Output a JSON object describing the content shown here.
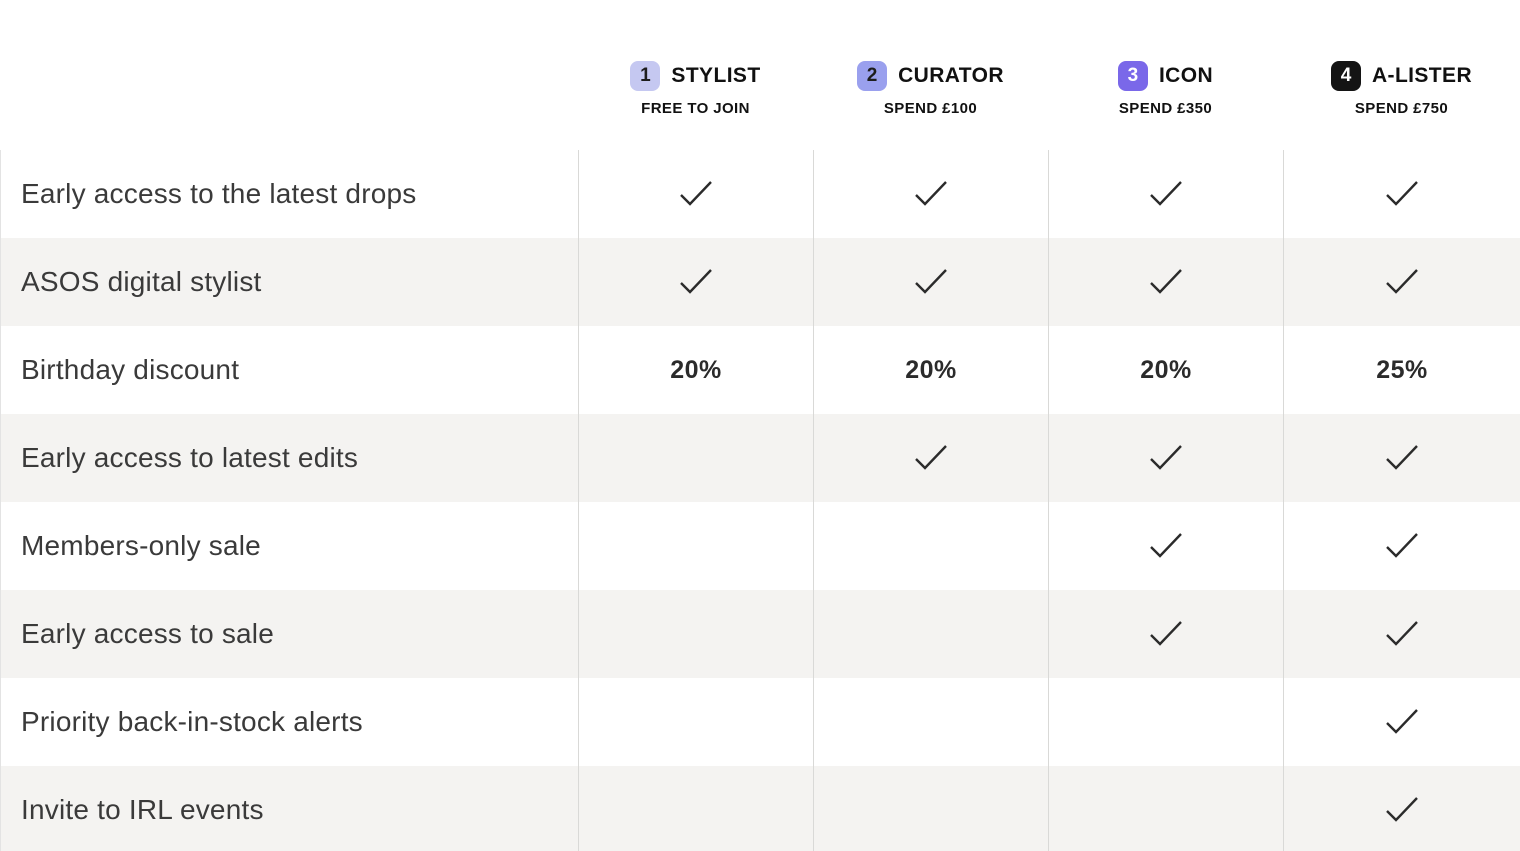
{
  "colors": {
    "stripe": "#f4f3f1",
    "rule": "#d9d9d7",
    "edge-rule": "#e3e3e3",
    "check": "#2b2b2b",
    "text": "#2e2e2e"
  },
  "tiers": [
    {
      "number": "1",
      "name": "STYLIST",
      "requirement": "FREE TO JOIN",
      "badge_bg": "#c5c8f1",
      "badge_fg": "#1d1d1d"
    },
    {
      "number": "2",
      "name": "CURATOR",
      "requirement": "SPEND £100",
      "badge_bg": "#9aa0ee",
      "badge_fg": "#1d1d1d"
    },
    {
      "number": "3",
      "name": "ICON",
      "requirement": "SPEND £350",
      "badge_bg": "#7a68e9",
      "badge_fg": "#ffffff"
    },
    {
      "number": "4",
      "name": "A-LISTER",
      "requirement": "SPEND £750",
      "badge_bg": "#141414",
      "badge_fg": "#ffffff"
    }
  ],
  "benefits": [
    {
      "label": "Early access to the latest drops",
      "cells": [
        "check",
        "check",
        "check",
        "check"
      ]
    },
    {
      "label": "ASOS digital stylist",
      "cells": [
        "check",
        "check",
        "check",
        "check"
      ]
    },
    {
      "label": "Birthday discount",
      "cells": [
        "20%",
        "20%",
        "20%",
        "25%"
      ]
    },
    {
      "label": "Early access to latest edits",
      "cells": [
        "",
        "check",
        "check",
        "check"
      ]
    },
    {
      "label": "Members-only sale",
      "cells": [
        "",
        "",
        "check",
        "check"
      ]
    },
    {
      "label": "Early access to sale",
      "cells": [
        "",
        "",
        "check",
        "check"
      ]
    },
    {
      "label": "Priority back-in-stock alerts",
      "cells": [
        "",
        "",
        "",
        "check"
      ]
    },
    {
      "label": "Invite to IRL events",
      "cells": [
        "",
        "",
        "",
        "check"
      ]
    }
  ]
}
